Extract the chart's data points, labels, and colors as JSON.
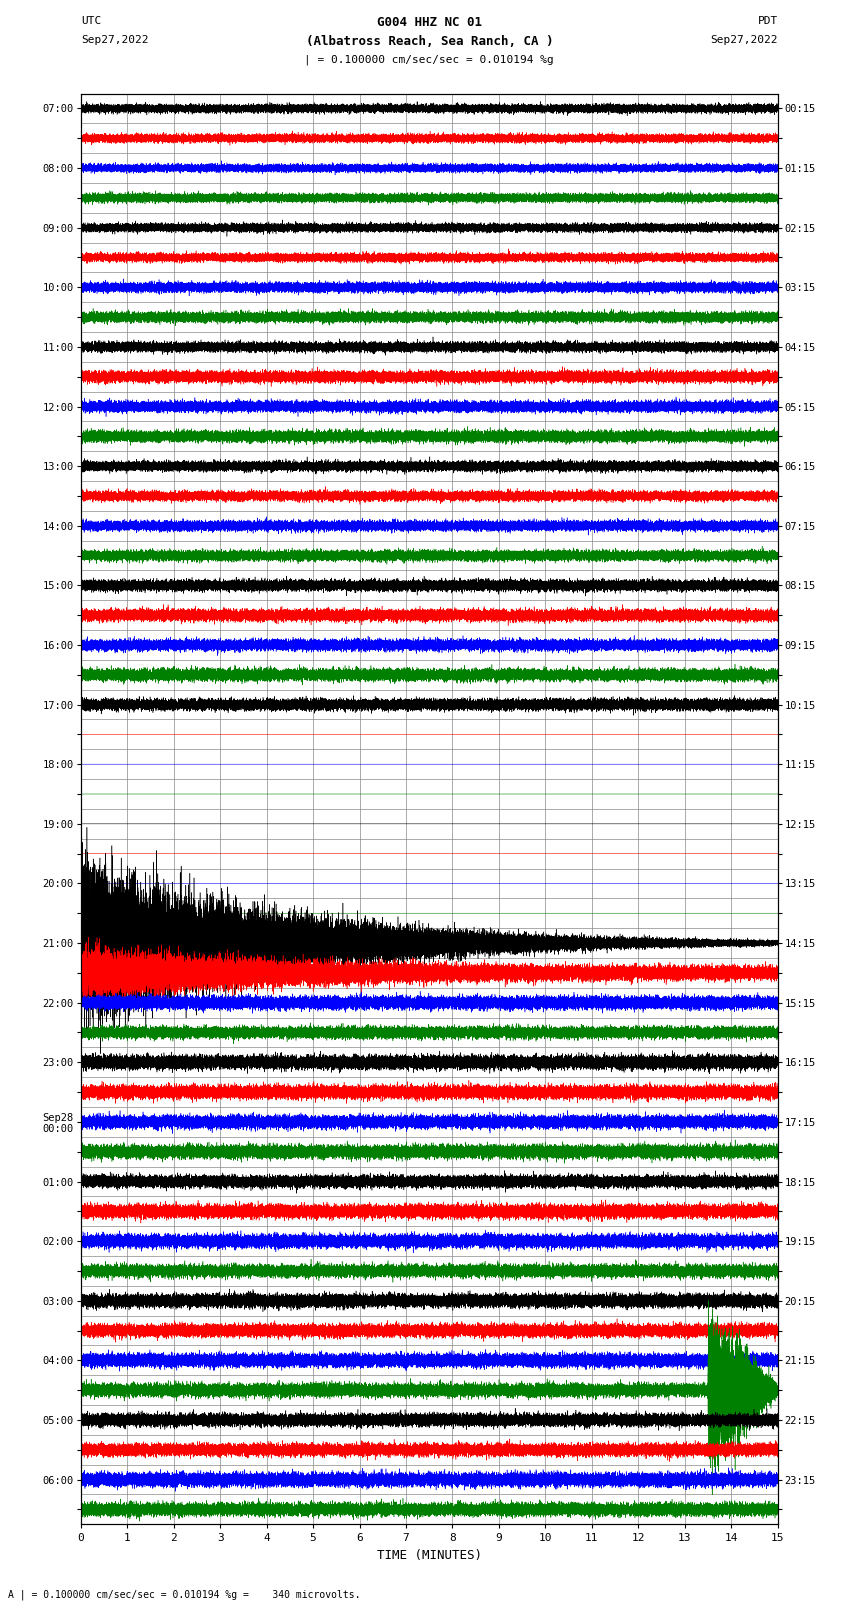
{
  "title_line1": "G004 HHZ NC 01",
  "title_line2": "(Albatross Reach, Sea Ranch, CA )",
  "scale_text": "| = 0.100000 cm/sec/sec = 0.010194 %g",
  "footer_text": "A | = 0.100000 cm/sec/sec = 0.010194 %g =    340 microvolts.",
  "xlabel": "TIME (MINUTES)",
  "utc_labels": [
    "07:00",
    "",
    "08:00",
    "",
    "09:00",
    "",
    "10:00",
    "",
    "11:00",
    "",
    "12:00",
    "",
    "13:00",
    "",
    "14:00",
    "",
    "15:00",
    "",
    "16:00",
    "",
    "17:00",
    "",
    "18:00",
    "",
    "19:00",
    "",
    "20:00",
    "",
    "21:00",
    "",
    "22:00",
    "",
    "23:00",
    "",
    "Sep28\n00:00",
    "",
    "01:00",
    "",
    "02:00",
    "",
    "03:00",
    "",
    "04:00",
    "",
    "05:00",
    "",
    "06:00",
    ""
  ],
  "pdt_labels": [
    "00:15",
    "",
    "01:15",
    "",
    "02:15",
    "",
    "03:15",
    "",
    "04:15",
    "",
    "05:15",
    "",
    "06:15",
    "",
    "07:15",
    "",
    "08:15",
    "",
    "09:15",
    "",
    "10:15",
    "",
    "11:15",
    "",
    "12:15",
    "",
    "13:15",
    "",
    "14:15",
    "",
    "15:15",
    "",
    "16:15",
    "",
    "17:15",
    "",
    "18:15",
    "",
    "19:15",
    "",
    "20:15",
    "",
    "21:15",
    "",
    "22:15",
    "",
    "23:15",
    ""
  ],
  "trace_colors": [
    "black",
    "red",
    "blue",
    "green"
  ],
  "num_rows": 48,
  "minutes": 15,
  "background_color": "white",
  "grid_color": "#888888"
}
